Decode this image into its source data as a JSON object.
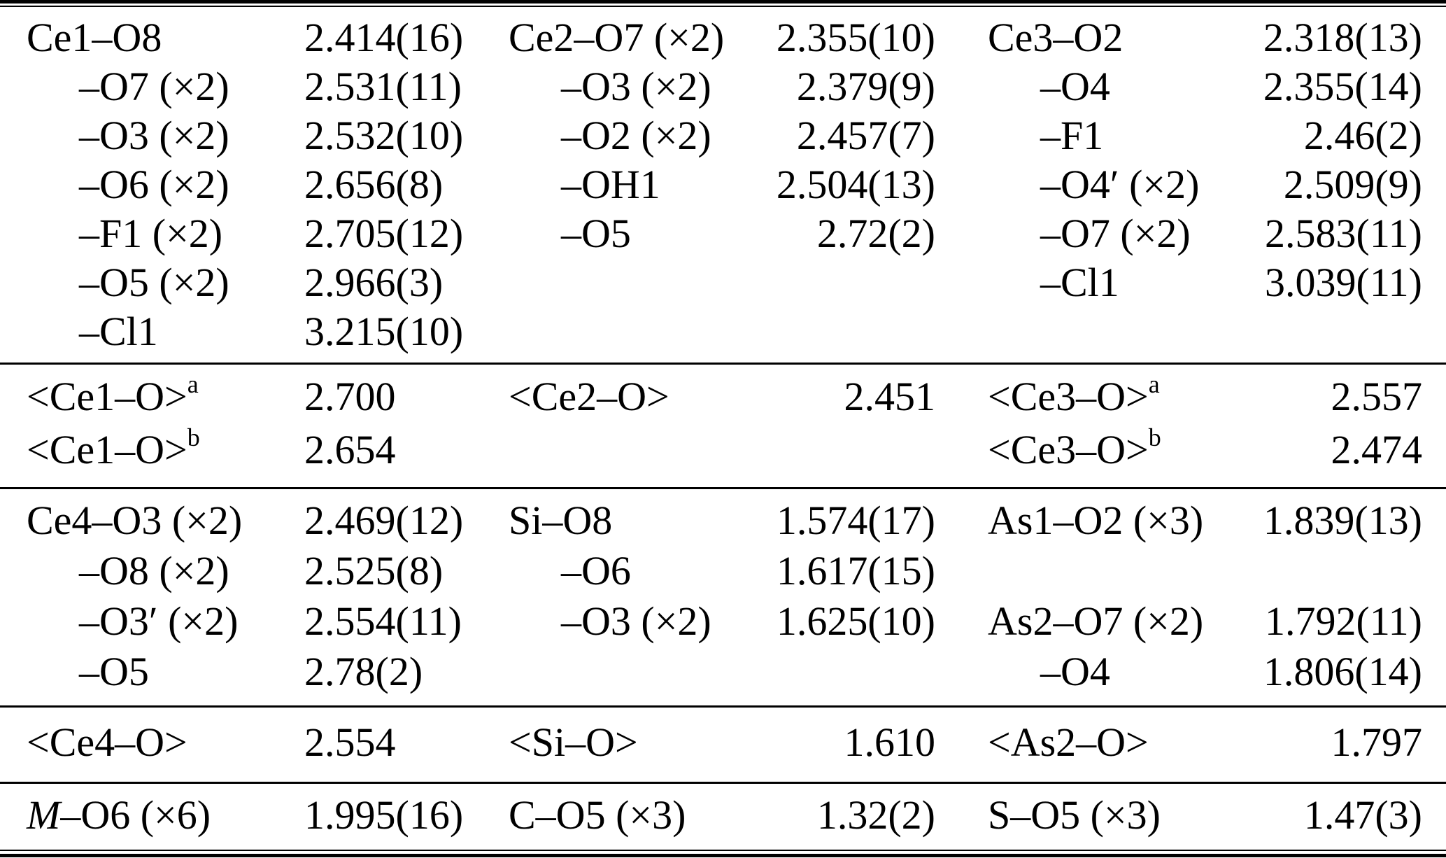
{
  "colors": {
    "text": "#000000",
    "background": "#ffffff",
    "rule": "#000000"
  },
  "table": {
    "blocks": [
      {
        "rows": [
          {
            "c1": "Ce1–O8",
            "v1": "2.414(16)",
            "c2": "Ce2–O7 (×2)",
            "v2": "2.355(10)",
            "c3": "Ce3–O2",
            "v3": "2.318(13)"
          },
          {
            "c1": "–O7 (×2)",
            "v1": "2.531(11)",
            "c2": "–O3 (×2)",
            "v2": "2.379(9)",
            "c3": "–O4",
            "v3": "2.355(14)"
          },
          {
            "c1": "–O3 (×2)",
            "v1": "2.532(10)",
            "c2": "–O2 (×2)",
            "v2": "2.457(7)",
            "c3": "–F1",
            "v3": "2.46(2)"
          },
          {
            "c1": "–O6 (×2)",
            "v1": "2.656(8)",
            "c2": "–OH1",
            "v2": "2.504(13)",
            "c3": "–O4′ (×2)",
            "v3": "2.509(9)"
          },
          {
            "c1": "–F1 (×2)",
            "v1": "2.705(12)",
            "c2": "–O5",
            "v2": "2.72(2)",
            "c3": "–O7 (×2)",
            "v3": "2.583(11)"
          },
          {
            "c1": "–O5 (×2)",
            "v1": "2.966(3)",
            "c2": "",
            "v2": "",
            "c3": "–Cl1",
            "v3": "3.039(11)"
          },
          {
            "c1": "–Cl1",
            "v1": "3.215(10)",
            "c2": "",
            "v2": "",
            "c3": "",
            "v3": ""
          }
        ]
      },
      {
        "rows": [
          {
            "c1": "<Ce1–O>",
            "c1sup": "a",
            "v1": "2.700",
            "c2": "<Ce2–O>",
            "v2": "2.451",
            "c3": "<Ce3–O>",
            "c3sup": "a",
            "v3": "2.557"
          },
          {
            "c1": "<Ce1–O>",
            "c1sup": "b",
            "v1": "2.654",
            "c2": "",
            "v2": "",
            "c3": "<Ce3–O>",
            "c3sup": "b",
            "v3": "2.474"
          }
        ]
      },
      {
        "rows": [
          {
            "c1": "Ce4–O3 (×2)",
            "v1": "2.469(12)",
            "c2": "Si–O8",
            "v2": "1.574(17)",
            "c3": "As1–O2 (×3)",
            "v3": "1.839(13)"
          },
          {
            "c1": "–O8 (×2)",
            "v1": "2.525(8)",
            "c2": "–O6",
            "v2": "1.617(15)",
            "c3": "",
            "v3": ""
          },
          {
            "c1": "–O3′ (×2)",
            "v1": "2.554(11)",
            "c2": "–O3 (×2)",
            "v2": "1.625(10)",
            "c3": "As2–O7 (×2)",
            "v3": "1.792(11)"
          },
          {
            "c1": "–O5",
            "v1": "2.78(2)",
            "c2": "",
            "v2": "",
            "c3": "–O4",
            "v3": "1.806(14)"
          }
        ]
      },
      {
        "rows": [
          {
            "c1": "<Ce4–O>",
            "v1": "2.554",
            "c2": "<Si–O>",
            "v2": "1.610",
            "c3": "<As2–O>",
            "v3": "1.797"
          }
        ]
      },
      {
        "rows": [
          {
            "c1pre": "M",
            "c1": "–O6 (×6)",
            "v1": "1.995(16)",
            "c2": "C–O5 (×3)",
            "v2": "1.32(2)",
            "c3": "S–O5 (×3)",
            "v3": "1.47(3)"
          }
        ]
      }
    ]
  }
}
